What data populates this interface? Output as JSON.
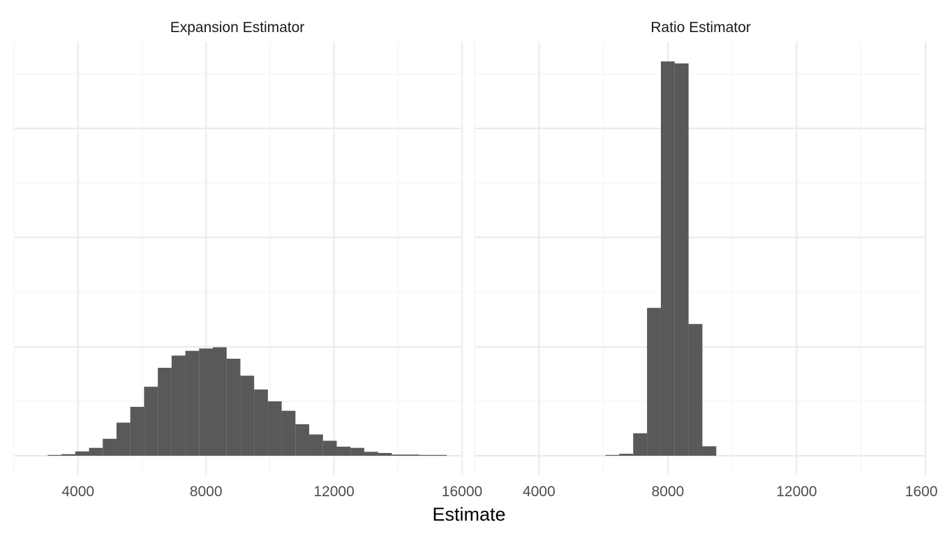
{
  "colors": {
    "bar": "#595959",
    "grid_major": "#ebebeb",
    "grid_minor": "#f2f2f2",
    "background": "#ffffff"
  },
  "chart_data": {
    "type": "bar",
    "xlabel": "Estimate",
    "ylabel": "",
    "grid": true,
    "legend": "none",
    "xlim": [
      2000,
      16000
    ],
    "ylim": [
      0,
      1
    ],
    "x_ticks": [
      4000,
      8000,
      12000,
      16000
    ],
    "x_tick_labels": [
      "4000",
      "8000",
      "12000",
      "16000"
    ],
    "bin_width": 430,
    "y_note": "y values are relative bar heights (no y-axis labels shown)",
    "panels": [
      {
        "title": "Expansion Estimator",
        "bin_centers": [
          3270,
          3700,
          4130,
          4560,
          4990,
          5420,
          5850,
          6280,
          6710,
          7140,
          7570,
          8000,
          8430,
          8860,
          9290,
          9720,
          10150,
          10580,
          11010,
          11440,
          11870,
          12300,
          12730,
          13160,
          13590,
          14020,
          14450,
          14880,
          15310
        ],
        "values": [
          0.002,
          0.004,
          0.011,
          0.02,
          0.043,
          0.084,
          0.124,
          0.175,
          0.223,
          0.254,
          0.266,
          0.272,
          0.275,
          0.246,
          0.203,
          0.168,
          0.138,
          0.114,
          0.08,
          0.054,
          0.038,
          0.023,
          0.02,
          0.01,
          0.007,
          0.003,
          0.003,
          0.002,
          0.002
        ]
      },
      {
        "title": "Ratio Estimator",
        "bin_centers": [
          6280,
          6710,
          7140,
          7570,
          8000,
          8430,
          8860,
          9290
        ],
        "values": [
          0.002,
          0.005,
          0.057,
          0.375,
          1.0,
          0.995,
          0.334,
          0.024
        ]
      }
    ]
  }
}
